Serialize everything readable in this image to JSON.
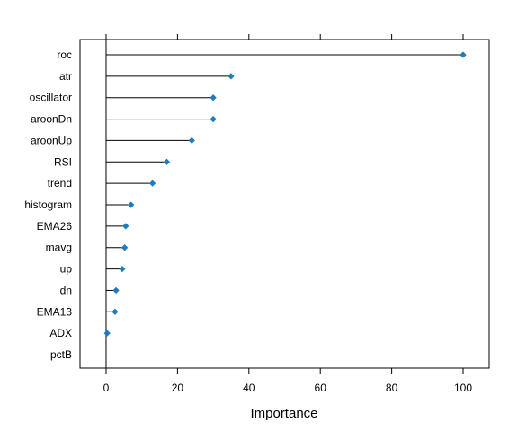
{
  "chart_data": {
    "type": "dotplot",
    "xlabel": "Importance",
    "ylabel": "",
    "title": "",
    "xlim": [
      -7.3,
      107.3
    ],
    "xticks": [
      0,
      20,
      40,
      60,
      80,
      100
    ],
    "categories": [
      "roc",
      "atr",
      "oscillator",
      "aroonDn",
      "aroonUp",
      "RSI",
      "trend",
      "histogram",
      "EMA26",
      "mavg",
      "up",
      "dn",
      "EMA13",
      "ADX",
      "pctB"
    ],
    "values": [
      100,
      35,
      30,
      30,
      24,
      17,
      13,
      7,
      5.5,
      5.2,
      4.5,
      2.8,
      2.5,
      0.3,
      0
    ],
    "baseline": 0,
    "point_color": "#1f7bbf",
    "line_color": "#000000",
    "frame_color": "#000000",
    "background": "#ffffff"
  }
}
